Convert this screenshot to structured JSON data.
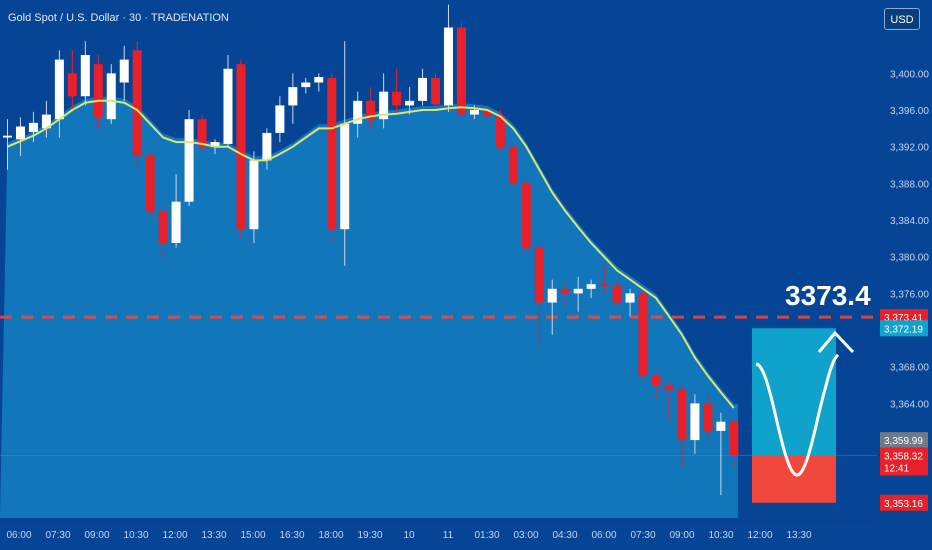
{
  "header": {
    "instrument_line": "Gold Spot / U.S. Dollar · 30 · TRADENATION",
    "currency_button": "USD"
  },
  "colors": {
    "background": "#064596",
    "up_candle": "#ffffff",
    "down_candle": "#e8202a",
    "moving_average": "#d9e86a",
    "band_fill": "#1587c9",
    "target_zone": "#0fa3cc",
    "stop_zone": "#f2473d",
    "target_line": "#f2473d"
  },
  "chart_data": {
    "type": "candlestick",
    "title": "Gold Spot / U.S. Dollar · 30 · TRADENATION",
    "ylim": [
      3351.5,
      3408.0
    ],
    "y_ticks": [
      3400,
      3396,
      3392,
      3388,
      3384,
      3380,
      3376,
      3368,
      3364
    ],
    "y_tick_labels": [
      "3,400.00",
      "3,396.00",
      "3,392.00",
      "3,388.00",
      "3,384.00",
      "3,380.00",
      "3,376.00",
      "3,368.00",
      "3,364.00"
    ],
    "x_tick_labels": [
      "06:00",
      "07:30",
      "09:00",
      "10:30",
      "12:00",
      "13:30",
      "15:00",
      "16:30",
      "18:00",
      "19:30",
      "10",
      "11",
      "01:30",
      "03:00",
      "04:30",
      "06:00",
      "07:30",
      "09:00",
      "10:30",
      "12:00",
      "13:30"
    ],
    "candles": [
      {
        "o": 3393.0,
        "h": 3395.0,
        "l": 3389.5,
        "c": 3393.2
      },
      {
        "o": 3392.8,
        "h": 3395.2,
        "l": 3391.0,
        "c": 3394.2
      },
      {
        "o": 3393.6,
        "h": 3395.8,
        "l": 3392.5,
        "c": 3394.6
      },
      {
        "o": 3394.0,
        "h": 3397.0,
        "l": 3393.0,
        "c": 3395.5
      },
      {
        "o": 3395.0,
        "h": 3402.5,
        "l": 3393.0,
        "c": 3401.5
      },
      {
        "o": 3400.0,
        "h": 3402.5,
        "l": 3396.0,
        "c": 3397.5
      },
      {
        "o": 3397.5,
        "h": 3403.5,
        "l": 3396.5,
        "c": 3402.0
      },
      {
        "o": 3401.0,
        "h": 3402.0,
        "l": 3394.0,
        "c": 3395.2
      },
      {
        "o": 3395.0,
        "h": 3401.0,
        "l": 3394.5,
        "c": 3400.0
      },
      {
        "o": 3399.0,
        "h": 3403.0,
        "l": 3397.0,
        "c": 3401.5
      },
      {
        "o": 3402.5,
        "h": 3403.5,
        "l": 3389.5,
        "c": 3391.0
      },
      {
        "o": 3391.0,
        "h": 3391.5,
        "l": 3384.5,
        "c": 3385.0
      },
      {
        "o": 3385.0,
        "h": 3385.5,
        "l": 3380.0,
        "c": 3381.5
      },
      {
        "o": 3381.5,
        "h": 3389.0,
        "l": 3381.0,
        "c": 3386.0
      },
      {
        "o": 3386.0,
        "h": 3396.0,
        "l": 3385.5,
        "c": 3395.0
      },
      {
        "o": 3395.0,
        "h": 3395.5,
        "l": 3391.5,
        "c": 3392.0
      },
      {
        "o": 3392.0,
        "h": 3392.8,
        "l": 3391.2,
        "c": 3392.5
      },
      {
        "o": 3392.3,
        "h": 3402.0,
        "l": 3392.0,
        "c": 3400.5
      },
      {
        "o": 3401.0,
        "h": 3401.5,
        "l": 3382.0,
        "c": 3383.0
      },
      {
        "o": 3383.0,
        "h": 3391.5,
        "l": 3381.5,
        "c": 3390.5
      },
      {
        "o": 3390.5,
        "h": 3394.0,
        "l": 3389.5,
        "c": 3393.5
      },
      {
        "o": 3393.5,
        "h": 3397.5,
        "l": 3392.5,
        "c": 3396.5
      },
      {
        "o": 3396.5,
        "h": 3400.0,
        "l": 3394.5,
        "c": 3398.5
      },
      {
        "o": 3398.5,
        "h": 3399.5,
        "l": 3397.8,
        "c": 3399.0
      },
      {
        "o": 3399.0,
        "h": 3400.0,
        "l": 3398.0,
        "c": 3399.6
      },
      {
        "o": 3399.5,
        "h": 3400.0,
        "l": 3381.5,
        "c": 3383.0
      },
      {
        "o": 3383.0,
        "h": 3403.5,
        "l": 3379.0,
        "c": 3394.5
      },
      {
        "o": 3394.5,
        "h": 3398.0,
        "l": 3393.0,
        "c": 3397.0
      },
      {
        "o": 3397.0,
        "h": 3398.5,
        "l": 3394.0,
        "c": 3395.0
      },
      {
        "o": 3395.0,
        "h": 3400.0,
        "l": 3394.0,
        "c": 3398.0
      },
      {
        "o": 3398.0,
        "h": 3400.5,
        "l": 3395.5,
        "c": 3396.5
      },
      {
        "o": 3396.5,
        "h": 3398.5,
        "l": 3395.5,
        "c": 3397.0
      },
      {
        "o": 3397.0,
        "h": 3400.5,
        "l": 3396.5,
        "c": 3399.5
      },
      {
        "o": 3399.5,
        "h": 3400.0,
        "l": 3396.0,
        "c": 3396.6
      },
      {
        "o": 3396.5,
        "h": 3407.5,
        "l": 3395.8,
        "c": 3405.0
      },
      {
        "o": 3405.0,
        "h": 3405.5,
        "l": 3395.2,
        "c": 3395.5
      },
      {
        "o": 3395.5,
        "h": 3396.5,
        "l": 3395.0,
        "c": 3396.0
      },
      {
        "o": 3396.0,
        "h": 3396.5,
        "l": 3395.0,
        "c": 3395.3
      },
      {
        "o": 3395.3,
        "h": 3396.0,
        "l": 3391.5,
        "c": 3392.0
      },
      {
        "o": 3392.0,
        "h": 3392.5,
        "l": 3387.5,
        "c": 3388.0
      },
      {
        "o": 3388.0,
        "h": 3388.5,
        "l": 3380.5,
        "c": 3381.0
      },
      {
        "o": 3381.0,
        "h": 3381.5,
        "l": 3370.0,
        "c": 3375.0
      },
      {
        "o": 3375.0,
        "h": 3377.5,
        "l": 3371.5,
        "c": 3376.5
      },
      {
        "o": 3376.5,
        "h": 3377.5,
        "l": 3374.5,
        "c": 3376.0
      },
      {
        "o": 3376.0,
        "h": 3377.8,
        "l": 3374.0,
        "c": 3376.5
      },
      {
        "o": 3376.5,
        "h": 3377.5,
        "l": 3375.5,
        "c": 3377.0
      },
      {
        "o": 3377.0,
        "h": 3379.0,
        "l": 3376.0,
        "c": 3376.8
      },
      {
        "o": 3376.8,
        "h": 3377.5,
        "l": 3374.5,
        "c": 3375.0
      },
      {
        "o": 3375.0,
        "h": 3376.5,
        "l": 3373.5,
        "c": 3376.0
      },
      {
        "o": 3376.0,
        "h": 3376.5,
        "l": 3366.5,
        "c": 3367.0
      },
      {
        "o": 3367.0,
        "h": 3367.5,
        "l": 3364.5,
        "c": 3366.0
      },
      {
        "o": 3366.0,
        "h": 3366.5,
        "l": 3362.0,
        "c": 3365.5
      },
      {
        "o": 3365.5,
        "h": 3366.0,
        "l": 3357.0,
        "c": 3360.0
      },
      {
        "o": 3360.0,
        "h": 3365.0,
        "l": 3358.5,
        "c": 3364.0
      },
      {
        "o": 3364.0,
        "h": 3365.0,
        "l": 3360.0,
        "c": 3361.0
      },
      {
        "o": 3361.0,
        "h": 3363.0,
        "l": 3354.0,
        "c": 3362.0
      },
      {
        "o": 3362.0,
        "h": 3362.5,
        "l": 3357.0,
        "c": 3358.32
      }
    ],
    "moving_average": [
      3392.0,
      3392.6,
      3393.2,
      3394.0,
      3395.0,
      3396.0,
      3396.8,
      3397.0,
      3397.0,
      3396.8,
      3396.0,
      3394.5,
      3393.0,
      3392.5,
      3392.5,
      3392.3,
      3392.0,
      3392.0,
      3391.2,
      3390.5,
      3390.5,
      3391.2,
      3392.0,
      3393.0,
      3394.0,
      3394.0,
      3394.5,
      3395.0,
      3395.3,
      3395.5,
      3395.6,
      3395.8,
      3396.0,
      3396.0,
      3396.2,
      3396.3,
      3396.2,
      3396.0,
      3395.3,
      3394.0,
      3392.0,
      3389.5,
      3387.0,
      3385.0,
      3383.2,
      3381.5,
      3380.0,
      3378.5,
      3377.5,
      3376.5,
      3375.5,
      3373.5,
      3371.5,
      3369.0,
      3367.0,
      3365.2,
      3363.5
    ],
    "target_level": 3373.41,
    "target_annotation": "3373.4",
    "price_tags": [
      {
        "label": "3,373.41",
        "value": 3373.41,
        "style": "red"
      },
      {
        "label": "3,372.19",
        "value": 3372.19,
        "style": "cyan"
      },
      {
        "label": "3,359.99",
        "value": 3359.99,
        "style": "gray"
      },
      {
        "label": "3,358.32",
        "value": 3358.32,
        "style": "red",
        "sub": "12:41"
      },
      {
        "label": "3,353.16",
        "value": 3353.16,
        "style": "red"
      }
    ],
    "position_box": {
      "entry": 3358.32,
      "target": 3372.19,
      "stop": 3353.16
    }
  }
}
